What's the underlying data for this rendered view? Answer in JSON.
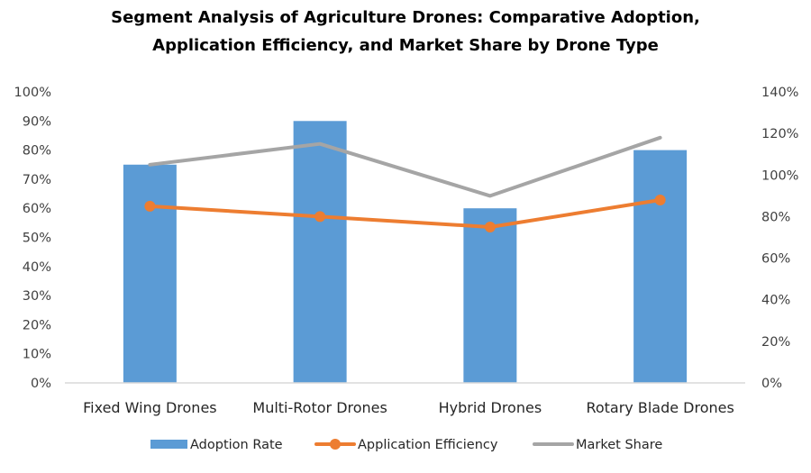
{
  "chart_data": {
    "type": "bar",
    "title_lines": [
      "Segment Analysis of Agriculture Drones: Comparative Adoption,",
      "Application Efficiency, and Market Share by Drone Type"
    ],
    "title": "Segment Analysis of Agriculture Drones: Comparative Adoption, Application Efficiency, and Market Share by Drone Type",
    "categories": [
      "Fixed Wing Drones",
      "Multi-Rotor Drones",
      "Hybrid Drones",
      "Rotary Blade Drones"
    ],
    "series": [
      {
        "name": "Adoption Rate",
        "type": "bar",
        "axis": "left",
        "values": [
          75,
          90,
          60,
          80
        ],
        "color": "#5B9BD5"
      },
      {
        "name": "Application Efficiency",
        "type": "line",
        "axis": "right",
        "marker": "circle",
        "values": [
          85,
          80,
          75,
          88
        ],
        "color": "#ED7D31"
      },
      {
        "name": "Market Share",
        "type": "line",
        "axis": "right",
        "marker": "none",
        "values": [
          105,
          115,
          90,
          118
        ],
        "color": "#A5A5A5"
      }
    ],
    "y_left": {
      "label": "",
      "range": [
        0,
        100
      ],
      "step": 10,
      "tick_labels": [
        "0%",
        "10%",
        "20%",
        "30%",
        "40%",
        "50%",
        "60%",
        "70%",
        "80%",
        "90%",
        "100%"
      ]
    },
    "y_right": {
      "label": "",
      "range": [
        0,
        140
      ],
      "step": 20,
      "tick_labels": [
        "0%",
        "20%",
        "40%",
        "60%",
        "80%",
        "100%",
        "120%",
        "140%"
      ]
    },
    "xlabel": "",
    "grid": false,
    "legend": {
      "position": "bottom",
      "entries": [
        "Adoption Rate",
        "Application Efficiency",
        "Market Share"
      ]
    },
    "axis_color": "#D9D9D9"
  }
}
